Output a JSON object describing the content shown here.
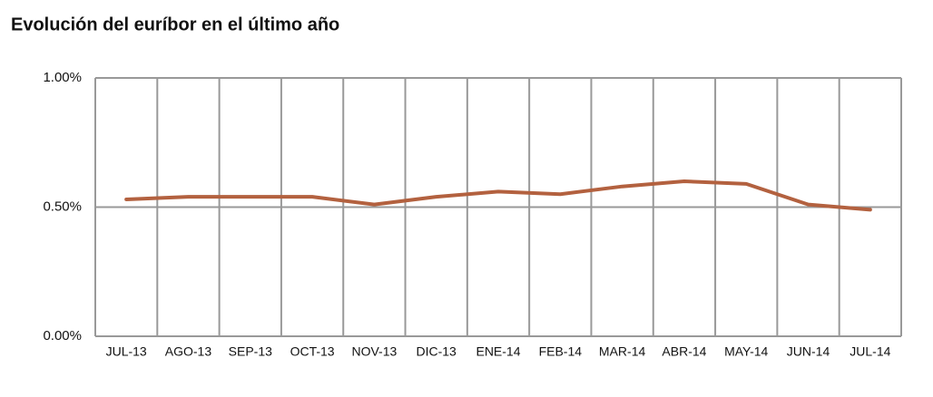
{
  "chart_data": {
    "type": "line",
    "title": "Evolución del euríbor en el último año",
    "categories": [
      "JUL-13",
      "AGO-13",
      "SEP-13",
      "OCT-13",
      "NOV-13",
      "DIC-13",
      "ENE-14",
      "FEB-14",
      "MAR-14",
      "ABR-14",
      "MAY-14",
      "JUN-14",
      "JUL-14"
    ],
    "series": [
      {
        "name": "Euríbor",
        "color": "#b3613f",
        "values": [
          0.53,
          0.54,
          0.54,
          0.54,
          0.51,
          0.54,
          0.56,
          0.55,
          0.58,
          0.6,
          0.59,
          0.51,
          0.49
        ]
      }
    ],
    "ylim": [
      0,
      1
    ],
    "yticks": [
      {
        "value": 0,
        "label": "0.00%"
      },
      {
        "value": 0.5,
        "label": "0.50%"
      },
      {
        "value": 1,
        "label": "1.00%"
      }
    ],
    "grid": true
  }
}
